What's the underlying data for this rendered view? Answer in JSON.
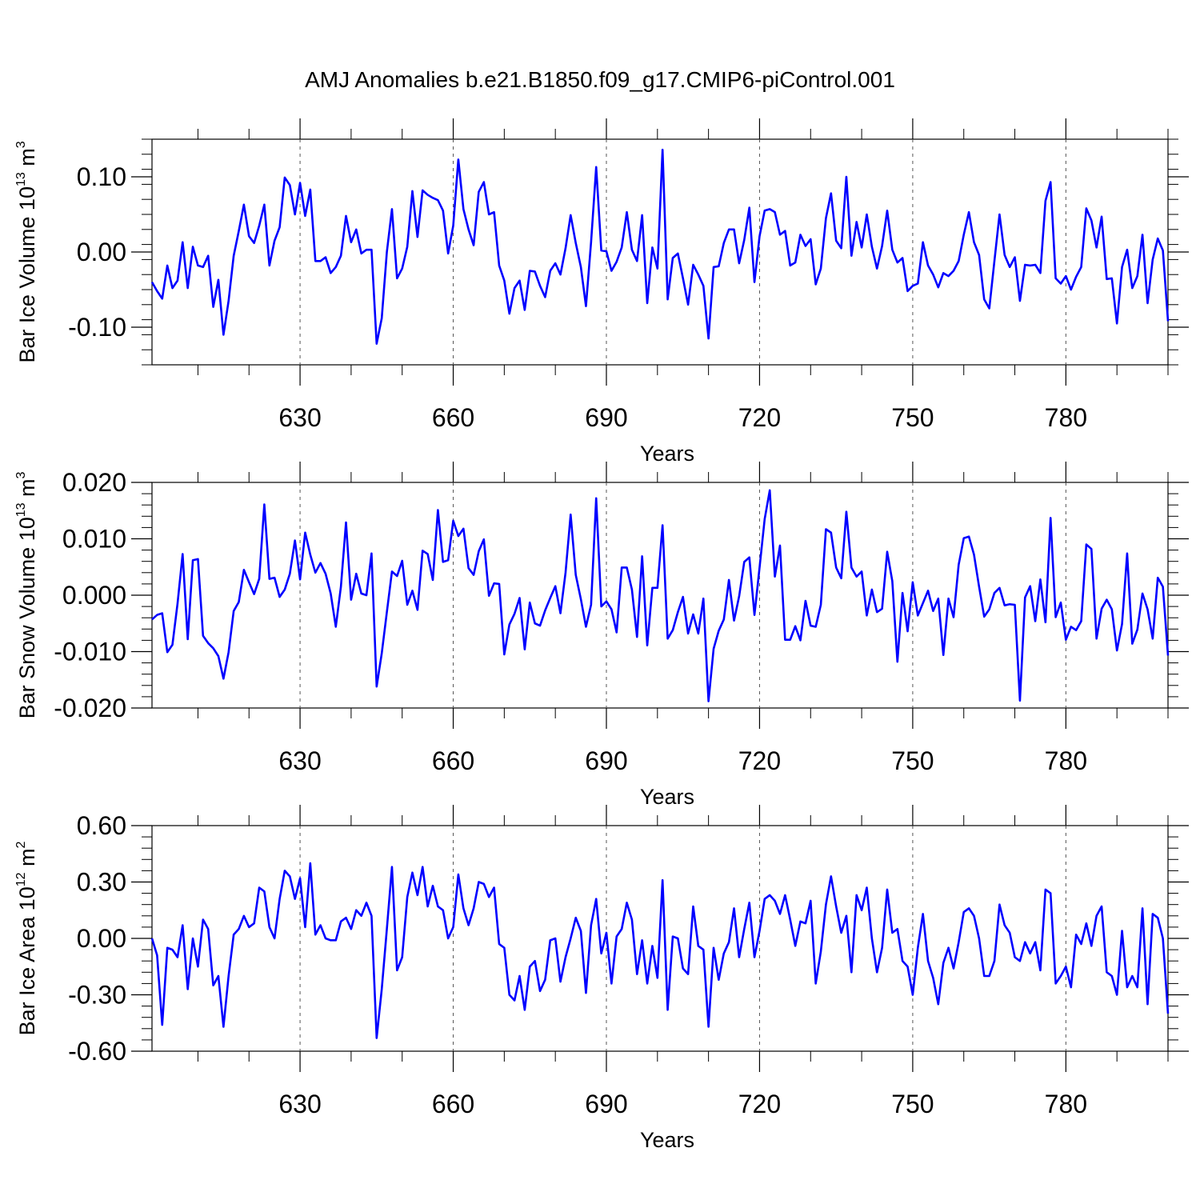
{
  "title": "AMJ Anomalies b.e21.B1850.f09_g17.CMIP6-piControl.001",
  "colors": {
    "series": "#0000ff",
    "axis": "#000000",
    "grid": "#555555"
  },
  "chart_data": [
    {
      "type": "line",
      "title": "AMJ Anomalies b.e21.B1850.f09_g17.CMIP6-piControl.001",
      "xlabel": "Years",
      "ylabel_text": "Bar Ice Volume 10",
      "ylabel_exp": "13",
      "ylabel_unit": " m",
      "ylabel_unit_exp": "3",
      "xlim": [
        601,
        800
      ],
      "ylim": [
        -0.15,
        0.15
      ],
      "xticks": [
        630,
        660,
        690,
        720,
        750,
        780
      ],
      "xtick_labels": [
        "630",
        "660",
        "690",
        "720",
        "750",
        "780"
      ],
      "yticks": [
        -0.1,
        0.0,
        0.1
      ],
      "ytick_labels": [
        "-0.10",
        "0.00",
        "0.10"
      ],
      "grid_x": true,
      "x_start": 601,
      "values": [
        -0.04,
        -0.052,
        -0.062,
        -0.018,
        -0.048,
        -0.038,
        0.013,
        -0.048,
        0.007,
        -0.018,
        -0.02,
        -0.005,
        -0.073,
        -0.037,
        -0.11,
        -0.065,
        -0.005,
        0.028,
        0.063,
        0.021,
        0.012,
        0.035,
        0.063,
        -0.018,
        0.015,
        0.033,
        0.099,
        0.089,
        0.05,
        0.092,
        0.048,
        0.083,
        -0.012,
        -0.012,
        -0.007,
        -0.028,
        -0.02,
        -0.005,
        0.048,
        0.013,
        0.03,
        -0.002,
        0.003,
        0.003,
        -0.122,
        -0.088,
        0.0,
        0.057,
        -0.035,
        -0.022,
        0.007,
        0.081,
        0.02,
        0.082,
        0.076,
        0.072,
        0.069,
        0.055,
        -0.002,
        0.035,
        0.123,
        0.057,
        0.03,
        0.009,
        0.08,
        0.093,
        0.05,
        0.053,
        -0.018,
        -0.038,
        -0.082,
        -0.048,
        -0.038,
        -0.077,
        -0.025,
        -0.026,
        -0.045,
        -0.06,
        -0.025,
        -0.015,
        -0.03,
        0.005,
        0.049,
        0.012,
        -0.02,
        -0.072,
        0.013,
        0.113,
        0.002,
        0.001,
        -0.025,
        -0.013,
        0.006,
        0.053,
        0.003,
        -0.012,
        0.049,
        -0.068,
        0.006,
        -0.022,
        0.136,
        -0.063,
        -0.008,
        -0.002,
        -0.035,
        -0.07,
        -0.017,
        -0.03,
        -0.045,
        -0.115,
        -0.02,
        -0.019,
        0.012,
        0.03,
        0.03,
        -0.015,
        0.016,
        0.059,
        -0.04,
        0.021,
        0.055,
        0.057,
        0.053,
        0.023,
        0.028,
        -0.018,
        -0.014,
        0.023,
        0.008,
        0.017,
        -0.043,
        -0.022,
        0.045,
        0.078,
        0.015,
        0.005,
        0.1,
        -0.005,
        0.04,
        0.006,
        0.05,
        0.007,
        -0.022,
        0.008,
        0.055,
        0.003,
        -0.014,
        -0.008,
        -0.052,
        -0.045,
        -0.042,
        0.013,
        -0.018,
        -0.03,
        -0.047,
        -0.028,
        -0.032,
        -0.025,
        -0.012,
        0.023,
        0.053,
        0.013,
        -0.004,
        -0.063,
        -0.075,
        -0.012,
        0.05,
        -0.004,
        -0.02,
        -0.007,
        -0.065,
        -0.017,
        -0.018,
        -0.017,
        -0.028,
        0.068,
        0.093,
        -0.035,
        -0.042,
        -0.032,
        -0.05,
        -0.033,
        -0.02,
        0.058,
        0.042,
        0.006,
        0.047,
        -0.036,
        -0.035,
        -0.095,
        -0.02,
        0.003,
        -0.048,
        -0.032,
        0.023,
        -0.068,
        -0.01,
        0.018,
        0.002,
        -0.092
      ]
    },
    {
      "type": "line",
      "xlabel": "Years",
      "ylabel_text": "Bar Snow Volume 10",
      "ylabel_exp": "13",
      "ylabel_unit": " m",
      "ylabel_unit_exp": "3",
      "xlim": [
        601,
        800
      ],
      "ylim": [
        -0.02,
        0.02
      ],
      "xticks": [
        630,
        660,
        690,
        720,
        750,
        780
      ],
      "xtick_labels": [
        "630",
        "660",
        "690",
        "720",
        "750",
        "780"
      ],
      "yticks": [
        -0.02,
        -0.01,
        0.0,
        0.01,
        0.02
      ],
      "ytick_labels": [
        "-0.020",
        "-0.010",
        "0.000",
        "0.010",
        "0.020"
      ],
      "grid_x": true,
      "x_start": 601,
      "values": [
        -0.0043,
        -0.0035,
        -0.0032,
        -0.0101,
        -0.0088,
        -0.0015,
        0.0073,
        -0.0078,
        0.0062,
        0.0064,
        -0.0072,
        -0.0085,
        -0.0094,
        -0.0108,
        -0.0148,
        -0.0101,
        -0.0028,
        -0.0012,
        0.0045,
        0.0023,
        0.0002,
        0.0029,
        0.0161,
        0.0029,
        0.0031,
        -0.0003,
        0.001,
        0.0038,
        0.0097,
        0.0028,
        0.0111,
        0.0072,
        0.004,
        0.0057,
        0.0038,
        0.0003,
        -0.0056,
        0.0015,
        0.0129,
        -0.0008,
        0.0038,
        0.0003,
        0.0,
        0.0074,
        -0.0162,
        -0.0103,
        -0.003,
        0.0042,
        0.0034,
        0.0061,
        -0.0017,
        0.0008,
        -0.0026,
        0.0079,
        0.0073,
        0.0027,
        0.0151,
        0.0059,
        0.0062,
        0.0132,
        0.0105,
        0.0118,
        0.0048,
        0.0036,
        0.0078,
        0.0099,
        -0.0001,
        0.0021,
        0.002,
        -0.0105,
        -0.0052,
        -0.0033,
        -0.0005,
        -0.0096,
        -0.0013,
        -0.005,
        -0.0054,
        -0.0027,
        -0.0005,
        0.0016,
        -0.0032,
        0.004,
        0.0143,
        0.0036,
        -0.0007,
        -0.0056,
        -0.0017,
        0.0172,
        -0.002,
        -0.0011,
        -0.0025,
        -0.0066,
        0.0049,
        0.0049,
        0.001,
        -0.0074,
        0.0069,
        -0.0089,
        0.0013,
        0.0013,
        0.0124,
        -0.0077,
        -0.0062,
        -0.003,
        -0.0003,
        -0.0068,
        -0.0034,
        -0.0068,
        -0.0006,
        -0.0188,
        -0.0095,
        -0.0063,
        -0.0043,
        0.0027,
        -0.0045,
        -0.0002,
        0.0059,
        0.0067,
        -0.0035,
        0.0049,
        0.0135,
        0.0186,
        0.0033,
        0.0088,
        -0.0079,
        -0.0079,
        -0.0055,
        -0.008,
        -0.001,
        -0.0054,
        -0.0056,
        -0.0017,
        0.0117,
        0.0111,
        0.0049,
        0.003,
        0.0148,
        0.0049,
        0.0033,
        0.0042,
        -0.0036,
        0.001,
        -0.003,
        -0.0024,
        0.0077,
        0.0025,
        -0.0118,
        0.0004,
        -0.0064,
        0.0023,
        -0.0036,
        -0.0014,
        0.0008,
        -0.0028,
        -0.0006,
        -0.0106,
        -0.0006,
        -0.0039,
        0.0054,
        0.0101,
        0.0104,
        0.0072,
        0.0015,
        -0.0038,
        -0.0025,
        0.0004,
        0.0013,
        -0.0018,
        -0.0016,
        -0.0017,
        -0.0187,
        -0.0004,
        0.0016,
        -0.0046,
        0.0028,
        -0.0048,
        0.0137,
        -0.0039,
        -0.0013,
        -0.0079,
        -0.0056,
        -0.0062,
        -0.0046,
        0.009,
        0.0082,
        -0.0077,
        -0.0024,
        -0.0008,
        -0.0025,
        -0.0098,
        -0.0051,
        0.0074,
        -0.0086,
        -0.0061,
        0.0003,
        -0.0025,
        -0.0077,
        0.0031,
        0.0015,
        -0.0107
      ]
    },
    {
      "type": "line",
      "xlabel": "Years",
      "ylabel_text": "Bar Ice Area 10",
      "ylabel_exp": "12",
      "ylabel_unit": " m",
      "ylabel_unit_exp": "2",
      "xlim": [
        601,
        800
      ],
      "ylim": [
        -0.6,
        0.6
      ],
      "xticks": [
        630,
        660,
        690,
        720,
        750,
        780
      ],
      "xtick_labels": [
        "630",
        "660",
        "690",
        "720",
        "750",
        "780"
      ],
      "yticks": [
        -0.6,
        -0.3,
        0.0,
        0.3,
        0.6
      ],
      "ytick_labels": [
        "-0.60",
        "-0.30",
        "0.00",
        "0.30",
        "0.60"
      ],
      "grid_x": true,
      "x_start": 601,
      "values": [
        0.0,
        -0.09,
        -0.46,
        -0.05,
        -0.06,
        -0.1,
        0.07,
        -0.27,
        0.0,
        -0.15,
        0.1,
        0.05,
        -0.25,
        -0.2,
        -0.47,
        -0.2,
        0.02,
        0.05,
        0.12,
        0.06,
        0.08,
        0.27,
        0.25,
        0.06,
        0.0,
        0.21,
        0.36,
        0.33,
        0.21,
        0.32,
        0.06,
        0.4,
        0.02,
        0.07,
        0.0,
        -0.01,
        -0.01,
        0.09,
        0.11,
        0.05,
        0.15,
        0.12,
        0.19,
        0.12,
        -0.53,
        -0.27,
        0.05,
        0.38,
        -0.17,
        -0.1,
        0.22,
        0.35,
        0.23,
        0.38,
        0.17,
        0.28,
        0.17,
        0.15,
        0.0,
        0.06,
        0.34,
        0.16,
        0.07,
        0.16,
        0.3,
        0.29,
        0.22,
        0.27,
        -0.03,
        -0.05,
        -0.3,
        -0.33,
        -0.2,
        -0.38,
        -0.15,
        -0.12,
        -0.28,
        -0.22,
        -0.01,
        0.0,
        -0.23,
        -0.1,
        0.0,
        0.11,
        0.04,
        -0.29,
        0.07,
        0.21,
        -0.08,
        0.03,
        -0.24,
        0.01,
        0.05,
        0.19,
        0.1,
        -0.19,
        -0.01,
        -0.24,
        -0.04,
        -0.21,
        0.31,
        -0.38,
        0.01,
        0.0,
        -0.16,
        -0.19,
        0.17,
        -0.04,
        -0.06,
        -0.47,
        -0.05,
        -0.22,
        -0.08,
        -0.02,
        0.16,
        -0.1,
        0.05,
        0.19,
        -0.1,
        0.04,
        0.21,
        0.23,
        0.2,
        0.13,
        0.23,
        0.1,
        -0.04,
        0.09,
        0.08,
        0.2,
        -0.24,
        -0.07,
        0.18,
        0.33,
        0.17,
        0.03,
        0.12,
        -0.18,
        0.23,
        0.15,
        0.27,
        0.0,
        -0.18,
        -0.05,
        0.26,
        0.03,
        0.05,
        -0.12,
        -0.15,
        -0.3,
        -0.05,
        0.13,
        -0.12,
        -0.21,
        -0.35,
        -0.13,
        -0.05,
        -0.16,
        -0.02,
        0.14,
        0.16,
        0.12,
        0.0,
        -0.2,
        -0.2,
        -0.12,
        0.18,
        0.07,
        0.03,
        -0.1,
        -0.12,
        -0.02,
        -0.08,
        -0.02,
        -0.17,
        0.26,
        0.24,
        -0.24,
        -0.2,
        -0.15,
        -0.26,
        0.02,
        -0.03,
        0.08,
        -0.04,
        0.12,
        0.17,
        -0.18,
        -0.2,
        -0.3,
        0.04,
        -0.26,
        -0.2,
        -0.26,
        0.16,
        -0.35,
        0.13,
        0.11,
        0.0,
        -0.4
      ]
    }
  ]
}
